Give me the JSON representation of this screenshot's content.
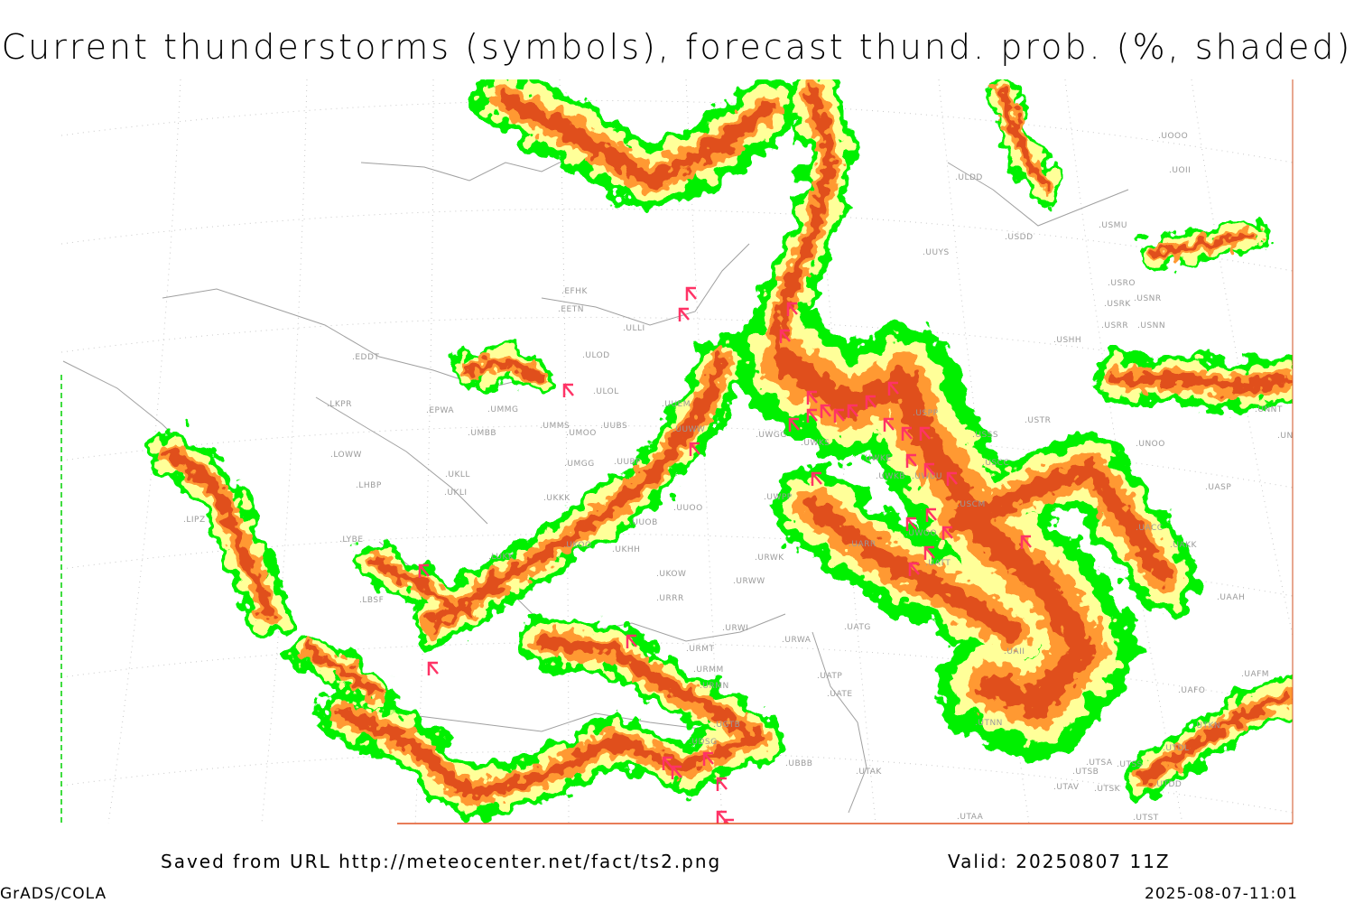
{
  "title": "Current thunderstorms (symbols), forecast thund. prob. (%, shaded)",
  "footer": {
    "source": "Saved from URL http://meteocenter.net/fact/ts2.png",
    "valid": "Valid: 20250807 11Z",
    "software": "GrADS/COLA",
    "timestamp": "2025-08-07-11:01"
  },
  "colors": {
    "prob_low": "#00f000",
    "prob_mid": "#ffff99",
    "prob_high": "#ff9933",
    "prob_very_high": "#e0501c",
    "thunderstorm_symbol": "#ff3366",
    "coastline": "#a0a0a0"
  },
  "symbol_icon": "thunderstorm-symbol",
  "stations": [
    "EDDT",
    "EPWA",
    "LKPR",
    "LOWW",
    "LHBP",
    "LYBE",
    "LBSF",
    "LIPZ",
    "LUKK",
    "UMMG",
    "UMBB",
    "UMMS",
    "UMOO",
    "UUBS",
    "UMGG",
    "UUBP",
    "UKLL",
    "UKLI",
    "UKKK",
    "UKOO",
    "UKHH",
    "EFHK",
    "EETN",
    "ULLI",
    "ULOD",
    "ULOL",
    "UUEM",
    "UUWW",
    "UUOO",
    "UUOB",
    "UKOW",
    "URRR",
    "URWI",
    "URMT",
    "URMM",
    "URMN",
    "UGTB",
    "UDSG",
    "UBBB",
    "UATG",
    "URWA",
    "UATP",
    "UATE",
    "UTAK",
    "UTAA",
    "UWPP",
    "UWKS",
    "UWKE",
    "UWKB",
    "UWUU",
    "UWGG",
    "USCM",
    "UWOO",
    "UATT",
    "UARR",
    "URWW",
    "URWK",
    "ULDD",
    "UUYS",
    "USDD",
    "USMU",
    "USRO",
    "USRK",
    "USNR",
    "USRR",
    "USNN",
    "USHH",
    "USTR",
    "USSS",
    "USCC",
    "USPP",
    "UNOO",
    "UNNT",
    "UNBB",
    "UOOO",
    "UOII",
    "UASP",
    "UACC",
    "UAKK",
    "UAAH",
    "UAII",
    "UTNN",
    "UAFM",
    "UAFO",
    "UTKN",
    "UTDL",
    "UTSA",
    "UTSB",
    "UTSS",
    "UTAV",
    "UTSK",
    "UTDD",
    "UTST"
  ]
}
